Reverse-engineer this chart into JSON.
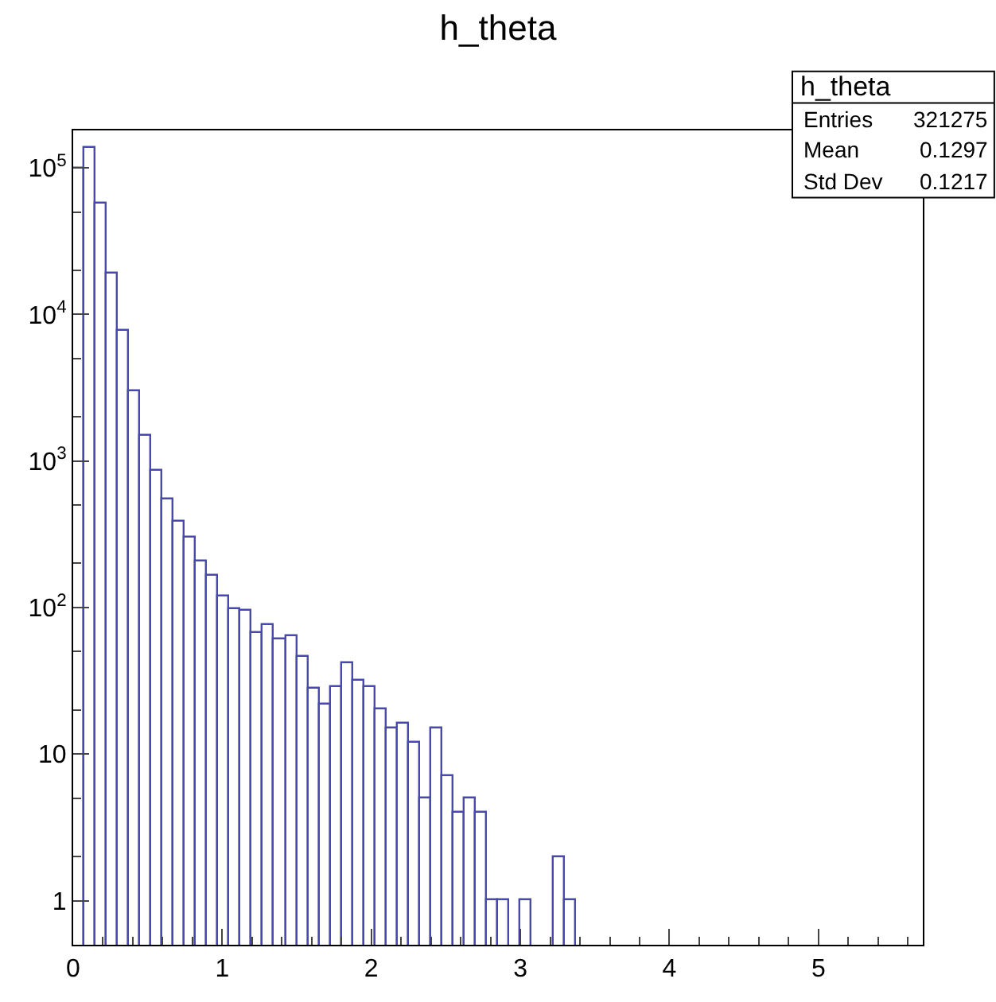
{
  "chart_data": {
    "type": "histogram",
    "title": "h_theta",
    "annotations": [
      "h_theta",
      "Entries 321275",
      "Mean 0.1297",
      "Std Dev 0.1217"
    ],
    "bins": [
      0,
      0.075,
      0.15,
      0.225,
      0.3,
      0.375,
      0.45,
      0.525,
      0.6,
      0.675,
      0.75,
      0.825,
      0.9,
      0.975,
      1.05,
      1.125,
      1.2,
      1.275,
      1.35,
      1.425,
      1.5,
      1.575,
      1.65,
      1.725,
      1.8,
      1.875,
      1.95,
      2.025,
      2.1,
      2.175,
      2.25,
      2.325,
      2.4,
      2.475,
      2.55,
      2.625,
      2.7,
      2.775,
      2.85,
      2.925,
      3,
      3.075,
      3.15,
      3.225,
      3.3,
      3.375,
      3.45,
      3.525,
      3.6,
      3.675,
      3.75,
      3.825,
      3.9,
      3.975,
      4.05,
      4.125,
      4.2,
      4.275,
      4.35,
      4.425,
      4.5,
      4.575,
      4.65,
      4.725,
      4.8,
      4.875,
      4.95,
      5.025,
      5.1,
      5.175,
      5.25,
      5.325,
      5.4,
      5.475,
      5.55,
      5.625,
      5.7
    ],
    "values": [
      98000,
      136000,
      57000,
      19000,
      7700,
      3000,
      1480,
      850,
      550,
      386,
      300,
      208,
      165,
      119,
      98,
      94,
      67,
      76,
      61,
      64,
      46,
      28,
      22,
      29,
      42,
      32,
      29,
      20,
      15,
      16,
      12,
      5,
      15,
      7,
      4,
      5,
      4,
      1,
      1,
      null,
      1,
      null,
      null,
      2,
      1,
      null,
      null,
      null,
      null,
      null,
      null,
      null,
      null,
      null,
      null,
      null,
      null,
      null,
      null,
      null,
      null,
      null,
      null,
      null,
      null,
      null,
      null,
      null,
      null,
      null,
      null,
      null,
      null,
      null,
      null,
      null
    ],
    "color": "#4848b0",
    "log": "y",
    "xlim": [
      0,
      5.7
    ],
    "xticks": [
      0,
      1,
      2,
      3,
      4,
      5
    ],
    "ylim": [
      0.5,
      180000
    ],
    "yticks": [
      1,
      10,
      {
        "value": 100,
        "label": "10$^{2}$"
      },
      {
        "value": 1000,
        "label": "10$^{3}$"
      },
      {
        "value": 10000,
        "label": "10$^{4}$"
      },
      {
        "value": 100000,
        "label": "10$^{5}$"
      }
    ]
  }
}
